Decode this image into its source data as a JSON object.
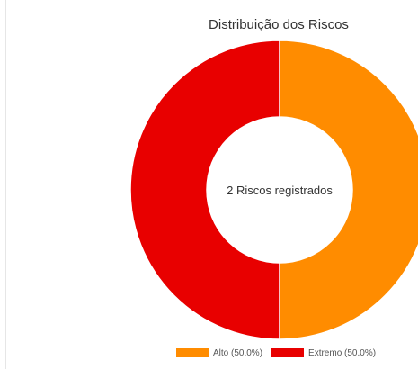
{
  "chart_data": {
    "type": "pie",
    "title": "Distribuição dos Riscos",
    "center_label": "2 Riscos registrados",
    "categories": [
      "Alto",
      "Extremo"
    ],
    "values": [
      1,
      1
    ],
    "percent_labels": [
      "50.0%",
      "50.0%"
    ],
    "legend_labels": [
      "Alto (50.0%)",
      "Extremo (50.0%)"
    ],
    "colors": [
      "#ff8c00",
      "#e80000"
    ],
    "legend_position": "bottom"
  }
}
